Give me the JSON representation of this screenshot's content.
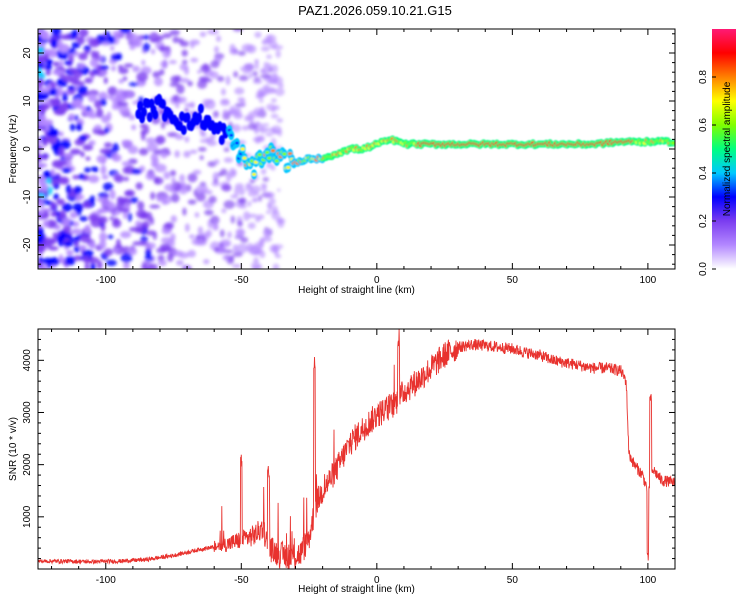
{
  "title": "PAZ1.2026.059.10.21.G15",
  "chart_data": [
    {
      "type": "heatmap",
      "xlabel": "Height of straight line (km)",
      "ylabel": "Frequency (Hz)",
      "xlim": [
        -125,
        110
      ],
      "ylim": [
        -25,
        25
      ],
      "xticks": [
        -100,
        -50,
        0,
        50,
        100
      ],
      "xtick_labels": [
        "-100",
        "-50",
        "0",
        "50",
        "100"
      ],
      "yticks": [
        -20,
        -10,
        0,
        10,
        20
      ],
      "ytick_labels": [
        "-20",
        "-10",
        "0",
        "10",
        "20"
      ],
      "ridge": {
        "x": [
          -85,
          -80,
          -75,
          -70,
          -65,
          -60,
          -55,
          -50,
          -47,
          -45,
          -40,
          -35,
          -30,
          -25,
          -20,
          -15,
          -10,
          -5,
          0,
          5,
          10,
          15,
          20,
          30,
          40,
          50,
          60,
          70,
          80,
          90,
          95,
          100,
          105,
          110
        ],
        "y": [
          8,
          9,
          7,
          5,
          7,
          4,
          3,
          -1,
          -4,
          -4,
          -1,
          -2,
          -3,
          -2,
          -2,
          -1,
          0,
          0,
          1,
          2,
          1,
          1,
          1,
          1,
          1,
          1,
          1,
          1,
          1,
          1.5,
          1.5,
          1.5,
          1.5,
          1.5
        ]
      },
      "colorbar": {
        "label": "Normalized spectral amplitude",
        "range": [
          0,
          1
        ],
        "ticks": [
          0,
          0.2,
          0.4,
          0.6,
          0.8
        ],
        "tick_labels": [
          "0.0",
          "0.2",
          "0.4",
          "0.6",
          "0.8"
        ],
        "colors": [
          "#ffffff",
          "#b388ff",
          "#7b3df0",
          "#0000ff",
          "#00c8ff",
          "#00ff80",
          "#80ff00",
          "#ffff00",
          "#ff8000",
          "#ff0000",
          "#ff1a75"
        ]
      },
      "grid": false
    },
    {
      "type": "line",
      "xlabel": "Height of straight line (km)",
      "ylabel": "SNR (10 * v/v)",
      "xlim": [
        -125,
        110
      ],
      "ylim": [
        0,
        4600
      ],
      "xticks": [
        -100,
        -50,
        0,
        50,
        100
      ],
      "xtick_labels": [
        "-100",
        "-50",
        "0",
        "50",
        "100"
      ],
      "yticks": [
        1000,
        2000,
        3000,
        4000
      ],
      "ytick_labels": [
        "1000",
        "2000",
        "3000",
        "4000"
      ],
      "color": "#e8322e",
      "series": [
        {
          "x": [
            -125,
            -115,
            -105,
            -95,
            -85,
            -80,
            -75,
            -70,
            -65,
            -60,
            -55,
            -50,
            -45,
            -42,
            -40,
            -35,
            -30,
            -28,
            -25,
            -23,
            -22,
            -20,
            -15,
            -10,
            -5,
            0,
            5,
            8,
            10,
            15,
            20,
            25,
            30,
            35,
            40,
            45,
            50,
            55,
            60,
            65,
            70,
            75,
            80,
            85,
            90,
            92,
            93,
            95,
            98,
            100,
            102,
            105,
            110
          ],
          "y": [
            150,
            150,
            140,
            150,
            180,
            220,
            260,
            320,
            380,
            420,
            480,
            560,
            650,
            800,
            400,
            260,
            250,
            300,
            600,
            1100,
            1300,
            1500,
            1900,
            2400,
            2700,
            2950,
            3100,
            3250,
            3400,
            3600,
            3850,
            4100,
            4250,
            4300,
            4280,
            4250,
            4220,
            4150,
            4100,
            4000,
            3950,
            3900,
            3850,
            3850,
            3800,
            3600,
            2200,
            2000,
            1800,
            1500,
            1900,
            1700,
            1650
          ]
        }
      ],
      "spikes": [
        {
          "x": -50,
          "y": 2050
        },
        {
          "x": -40,
          "y": 1850
        },
        {
          "x": -23,
          "y": 4050
        },
        {
          "x": 8,
          "y": 4500
        },
        {
          "x": 101,
          "y": 3250
        }
      ],
      "dips": [
        {
          "x": 100,
          "y": 200
        }
      ],
      "grid": false
    }
  ]
}
